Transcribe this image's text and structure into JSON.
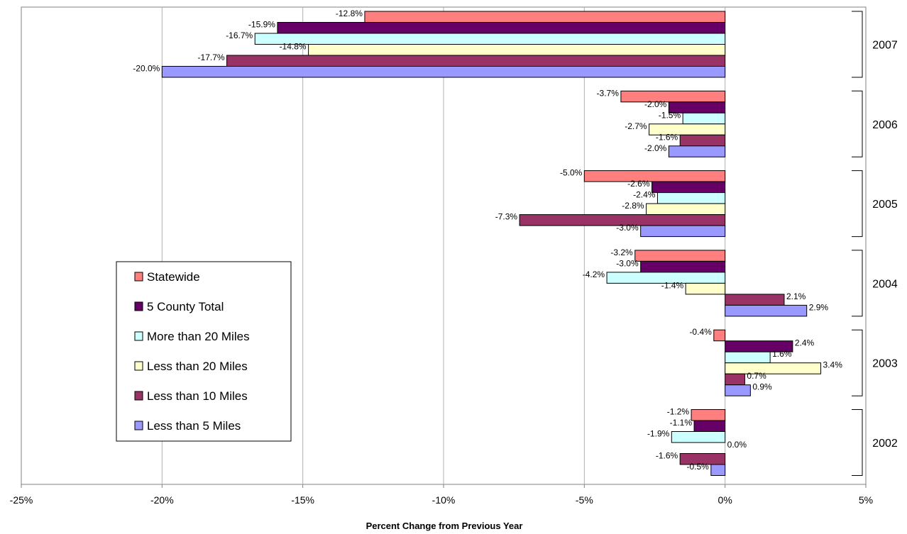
{
  "chart_data": {
    "type": "bar",
    "orientation": "horizontal",
    "xlabel": "Percent Change from Previous Year",
    "xlim": [
      -25,
      5
    ],
    "x_ticks": [
      "-25%",
      "-20%",
      "-15%",
      "-10%",
      "-5%",
      "0%",
      "5%"
    ],
    "grid": "vertical gridlines",
    "legend_position": "left-center",
    "categories": [
      "2007",
      "2006",
      "2005",
      "2004",
      "2003",
      "2002"
    ],
    "series": [
      {
        "name": "Statewide",
        "color": "#FF7F7F",
        "values": [
          -12.8,
          -3.7,
          -5.0,
          -3.2,
          -0.4,
          -1.2
        ],
        "labels": [
          "-12.8%",
          "-3.7%",
          "-5.0%",
          "-3.2%",
          "-0.4%",
          "-1.2%"
        ]
      },
      {
        "name": "5 County Total",
        "color": "#660066",
        "values": [
          -15.9,
          -2.0,
          -2.6,
          -3.0,
          2.4,
          -1.1
        ],
        "labels": [
          "-15.9%",
          "-2.0%",
          "-2.6%",
          "-3.0%",
          "2.4%",
          "-1.1%"
        ]
      },
      {
        "name": "More than 20 Miles",
        "color": "#CCFFFF",
        "values": [
          -16.7,
          -1.5,
          -2.4,
          -4.2,
          1.6,
          -1.9
        ],
        "labels": [
          "-16.7%",
          "-1.5%",
          "-2.4%",
          "-4.2%",
          "1.6%",
          "-1.9%"
        ]
      },
      {
        "name": "Less than 20 Miles",
        "color": "#FFFFCC",
        "values": [
          -14.8,
          -2.7,
          -2.8,
          -1.4,
          3.4,
          0.0
        ],
        "labels": [
          "-14.8%",
          "-2.7%",
          "-2.8%",
          "-1.4%",
          "3.4%",
          "0.0%"
        ]
      },
      {
        "name": "Less than 10 Miles",
        "color": "#993366",
        "values": [
          -17.7,
          -1.6,
          -7.3,
          2.1,
          0.7,
          -1.6
        ],
        "labels": [
          "-17.7%",
          "-1.6%",
          "-7.3%",
          "2.1%",
          "0.7%",
          "-1.6%"
        ]
      },
      {
        "name": "Less than 5 Miles",
        "color": "#9999FF",
        "values": [
          -20.0,
          -2.0,
          -3.0,
          2.9,
          0.9,
          -0.5
        ],
        "labels": [
          "-20.0%",
          "-2.0%",
          "-3.0%",
          "2.9%",
          "0.9%",
          "-0.5%"
        ]
      }
    ]
  }
}
